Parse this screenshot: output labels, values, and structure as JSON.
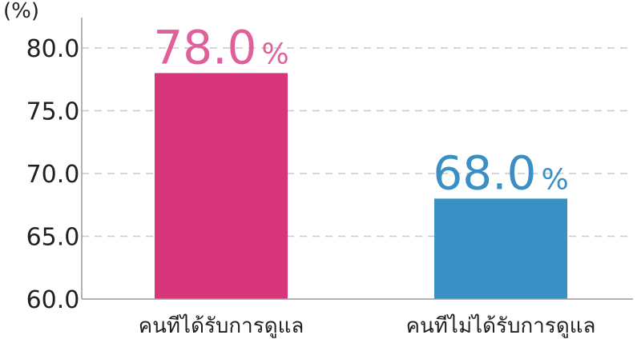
{
  "chart_data": {
    "type": "bar",
    "categories": [
      "คนทีได้รับการดูแล",
      "คนทีไม่ได้รับการดูแล"
    ],
    "values": [
      78.0,
      68.0
    ],
    "value_labels": [
      "78.0",
      "68.0"
    ],
    "value_unit": "%",
    "ylabel": "(%)",
    "ylim": [
      60,
      80
    ],
    "yticks": [
      "60.0",
      "65.0",
      "70.0",
      "75.0",
      "80.0"
    ],
    "ytick_values": [
      60,
      65,
      70,
      75,
      80
    ],
    "grid": true,
    "colors": [
      "#d9357a",
      "#3a8fc4"
    ],
    "label_colors": [
      "#e0609a",
      "#3a8fc4"
    ]
  }
}
